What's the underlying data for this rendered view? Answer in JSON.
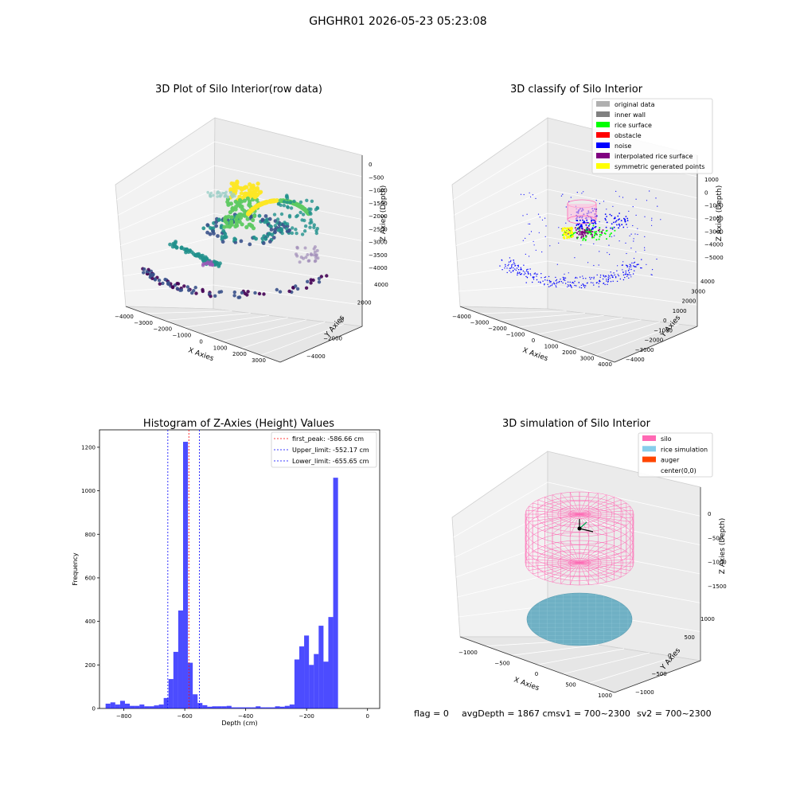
{
  "figure": {
    "suptitle": "GHGHR01 2026-05-23 05:23:08",
    "footer": {
      "flag": "flag = 0",
      "avg": "avgDepth = 1867 cmsv1 = 700~2300",
      "sv2": "sv2 = 700~2300"
    }
  },
  "panels": {
    "raw": {
      "title": "3D Plot of Silo Interior(row data)",
      "xlabel": "X Axies",
      "ylabel": "Y Axies",
      "zlabel": "Z Axies (Depth)",
      "xticks": [
        "−4000",
        "−3000",
        "−2000",
        "−1000",
        "0",
        "1000",
        "2000",
        "3000"
      ],
      "yticks": [
        "−4000",
        "−2000",
        "0",
        "2000",
        "4000"
      ],
      "zticks": [
        "0",
        "−500",
        "−1000",
        "−1500",
        "−2000",
        "−2500",
        "−3000",
        "−3500",
        "−4000"
      ],
      "colormap": [
        "#440154",
        "#3b528b",
        "#21918c",
        "#5ec962",
        "#fde725"
      ]
    },
    "classify": {
      "title": "3D classify of Silo Interior",
      "xlabel": "X Axies",
      "ylabel": "Y Axies",
      "zlabel": "Z Axies (Depth)",
      "xticks": [
        "−4000",
        "−3000",
        "−2000",
        "−1000",
        "0",
        "1000",
        "2000",
        "3000",
        "4000"
      ],
      "yticks": [
        "−4000",
        "−3000",
        "−2000",
        "−1000",
        "0",
        "1000",
        "2000",
        "3000",
        "4000"
      ],
      "zticks": [
        "1000",
        "0",
        "−1000",
        "−2000",
        "−3000",
        "−4000",
        "−5000"
      ],
      "legend": [
        {
          "label": "original data",
          "color": "#b0b0b0"
        },
        {
          "label": "inner wall",
          "color": "#808080"
        },
        {
          "label": "rice surface",
          "color": "#00ff00"
        },
        {
          "label": "obstacle",
          "color": "#ff0000"
        },
        {
          "label": "noise",
          "color": "#0000ff"
        },
        {
          "label": "interpolated rice surface",
          "color": "#800080"
        },
        {
          "label": "symmetric generated points",
          "color": "#ffff00"
        }
      ]
    },
    "simulation": {
      "title": "3D simulation of Silo Interior",
      "xlabel": "X Axies",
      "ylabel": "Y Axies",
      "zlabel": "Z Axies (Depth)",
      "xticks": [
        "−1000",
        "−500",
        "0",
        "500",
        "1000"
      ],
      "yticks": [
        "−1000",
        "−500",
        "0",
        "500",
        "1000"
      ],
      "zticks": [
        "0",
        "−500",
        "−1000",
        "−1500"
      ],
      "legend": [
        {
          "label": "silo",
          "color": "#ff69b4"
        },
        {
          "label": "rice simulation",
          "color": "#87ceeb"
        },
        {
          "label": "auger",
          "color": "#ff4500"
        },
        {
          "label": "center(0,0)",
          "color": "#ffffff"
        }
      ]
    }
  },
  "chart_data": [
    {
      "type": "bar",
      "title": "Histogram of Z-Axies (Height) Values",
      "xlabel": "Depth (cm)",
      "ylabel": "Frequency",
      "xlim": [
        -880,
        40
      ],
      "ylim": [
        0,
        1280
      ],
      "xticks": [
        -800,
        -600,
        -400,
        -200,
        0
      ],
      "xtick_labels": [
        "−800",
        "−600",
        "−400",
        "−200",
        "0"
      ],
      "yticks": [
        0,
        200,
        400,
        600,
        800,
        1000,
        1200
      ],
      "bin_edges_start": -860,
      "bin_width": 15.9,
      "values": [
        22,
        28,
        18,
        35,
        22,
        12,
        12,
        18,
        10,
        10,
        14,
        18,
        48,
        135,
        260,
        450,
        1225,
        210,
        65,
        25,
        15,
        8,
        10,
        10,
        10,
        12,
        5,
        5,
        5,
        5,
        5,
        10,
        5,
        5,
        5,
        10,
        8,
        12,
        18,
        225,
        285,
        335,
        200,
        250,
        380,
        215,
        420,
        1060
      ],
      "bar_color": "#0000ff",
      "bar_alpha": 0.7,
      "legend": [
        {
          "label": "first_peak: -586.66 cm",
          "value": -586.66,
          "color": "#ff0000"
        },
        {
          "label": "Upper_limit: -552.17 cm",
          "value": -552.17,
          "color": "#0000ff"
        },
        {
          "label": "Lower_limit: -655.65 cm",
          "value": -655.65,
          "color": "#0000ff"
        }
      ]
    }
  ]
}
